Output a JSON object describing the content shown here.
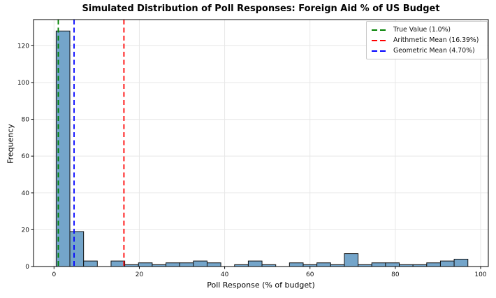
{
  "title": "Simulated Distribution of Poll Responses: Foreign Aid % of US Budget",
  "chart_data": {
    "type": "bar",
    "subtype": "histogram",
    "title": "Simulated Distribution of Poll Responses: Foreign Aid % of US Budget",
    "xlabel": "Poll Response (% of budget)",
    "ylabel": "Frequency",
    "xlim": [
      -4.8,
      101.8
    ],
    "ylim": [
      0,
      134.2
    ],
    "x_ticks": [
      0,
      20,
      40,
      60,
      80,
      100
    ],
    "y_ticks": [
      0,
      20,
      40,
      60,
      80,
      100,
      120
    ],
    "grid": true,
    "grid_color": "#e7e7e7",
    "bin_start": 0.5,
    "bin_width": 3.217,
    "counts": [
      128,
      19,
      3,
      0,
      3,
      1,
      2,
      1,
      2,
      2,
      3,
      2,
      0,
      1,
      3,
      1,
      0,
      2,
      1,
      2,
      1,
      7,
      1,
      2,
      2,
      1,
      1,
      2,
      3,
      4
    ],
    "bar_color": "#74a5ca",
    "bar_edge_color": "#111111",
    "lines": [
      {
        "label": "True Value (1.0%)",
        "x": 1.0,
        "color": "#008000",
        "style": "dashed"
      },
      {
        "label": "Arithmetic Mean (16.39%)",
        "x": 16.39,
        "color": "#ff0000",
        "style": "dashed"
      },
      {
        "label": "Geometric Mean (4.70%)",
        "x": 4.7,
        "color": "#0000ff",
        "style": "dashed"
      }
    ],
    "legend_position": "upper right"
  }
}
